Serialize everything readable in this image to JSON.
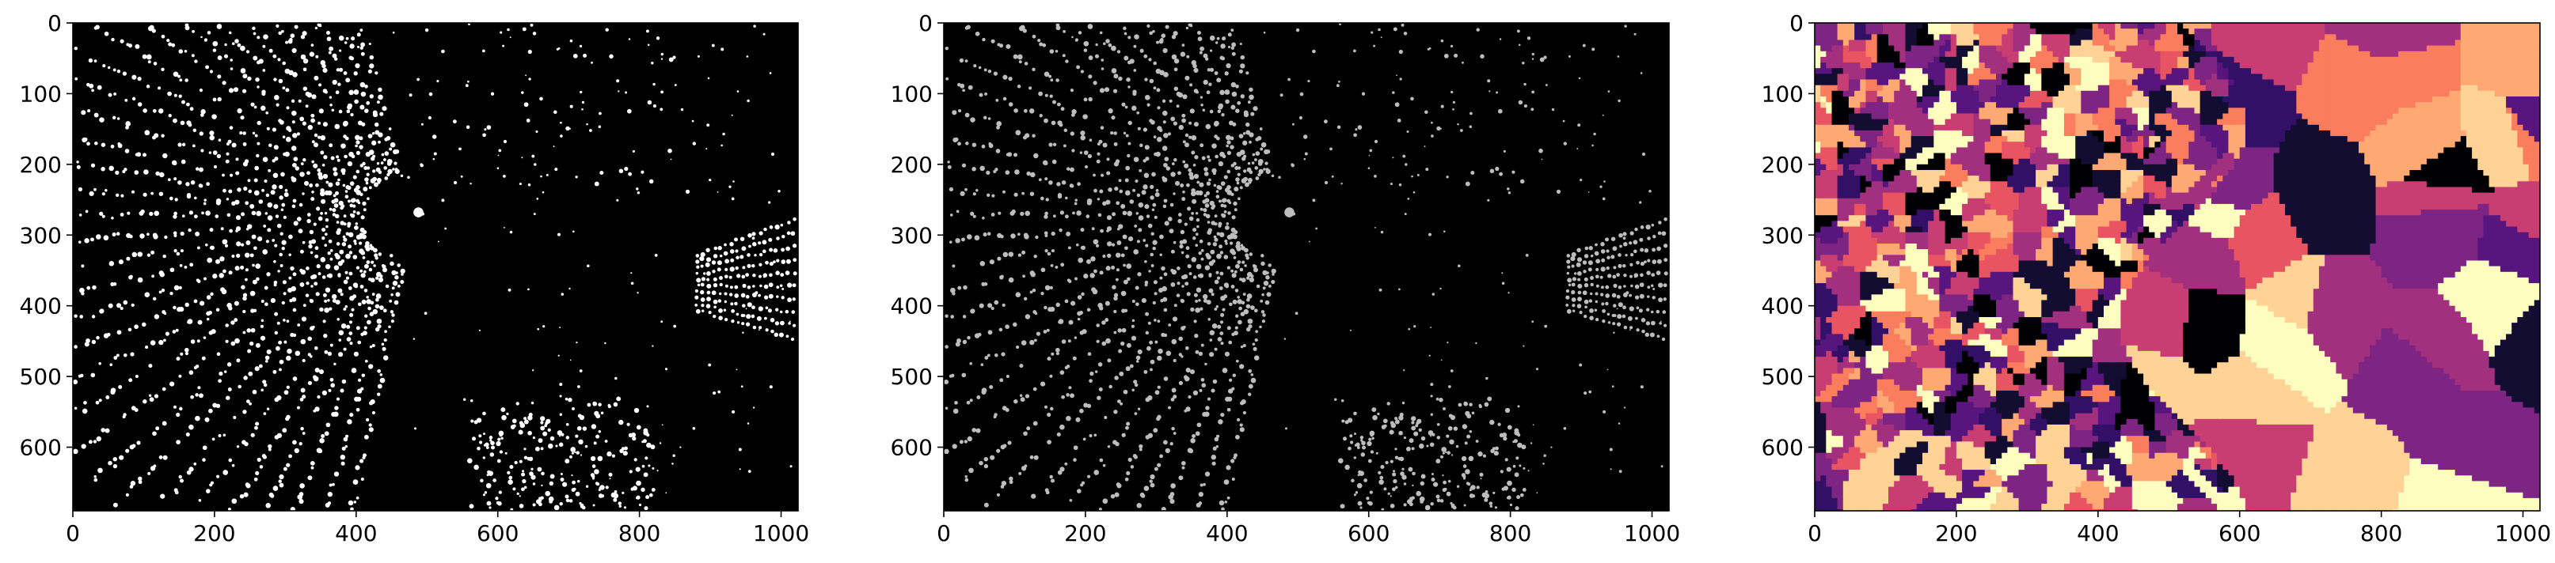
{
  "chart_data": [
    {
      "type": "image",
      "description_colormap": "binary",
      "image_shape": [
        690,
        1024
      ],
      "xlim": [
        0,
        1024
      ],
      "ylim": [
        690,
        0
      ],
      "xticks": [
        0,
        200,
        400,
        600,
        800,
        1000
      ],
      "yticks": [
        0,
        100,
        200,
        300,
        400,
        500,
        600
      ],
      "xtick_labels": [
        "0",
        "200",
        "400",
        "600",
        "800",
        "1000"
      ],
      "ytick_labels": [
        "0",
        "100",
        "200",
        "300",
        "400",
        "500",
        "600"
      ],
      "colors": {
        "background": "#000000",
        "marks": "#ffffff"
      }
    },
    {
      "type": "image",
      "description_colormap": "gray",
      "image_shape": [
        690,
        1024
      ],
      "xlim": [
        0,
        1024
      ],
      "ylim": [
        690,
        0
      ],
      "xticks": [
        0,
        200,
        400,
        600,
        800,
        1000
      ],
      "yticks": [
        0,
        100,
        200,
        300,
        400,
        500,
        600
      ],
      "xtick_labels": [
        "0",
        "200",
        "400",
        "600",
        "800",
        "1000"
      ],
      "ytick_labels": [
        "0",
        "100",
        "200",
        "300",
        "400",
        "500",
        "600"
      ],
      "colors": {
        "background": "#000000",
        "marks": "#bdbdbd"
      }
    },
    {
      "type": "image",
      "description_colormap": "magma",
      "image_shape": [
        690,
        1024
      ],
      "xlim": [
        0,
        1024
      ],
      "ylim": [
        690,
        0
      ],
      "xticks": [
        0,
        200,
        400,
        600,
        800,
        1000
      ],
      "yticks": [
        0,
        100,
        200,
        300,
        400,
        500,
        600
      ],
      "xtick_labels": [
        "0",
        "200",
        "400",
        "600",
        "800",
        "1000"
      ],
      "ytick_labels": [
        "0",
        "100",
        "200",
        "300",
        "400",
        "500",
        "600"
      ],
      "colors": {
        "palette": [
          "#000004",
          "#120d31",
          "#331067",
          "#59157e",
          "#7e2482",
          "#a3307e",
          "#c83e73",
          "#e95462",
          "#fa7d5e",
          "#fea973",
          "#fed395",
          "#fcfdbf"
        ]
      }
    }
  ]
}
